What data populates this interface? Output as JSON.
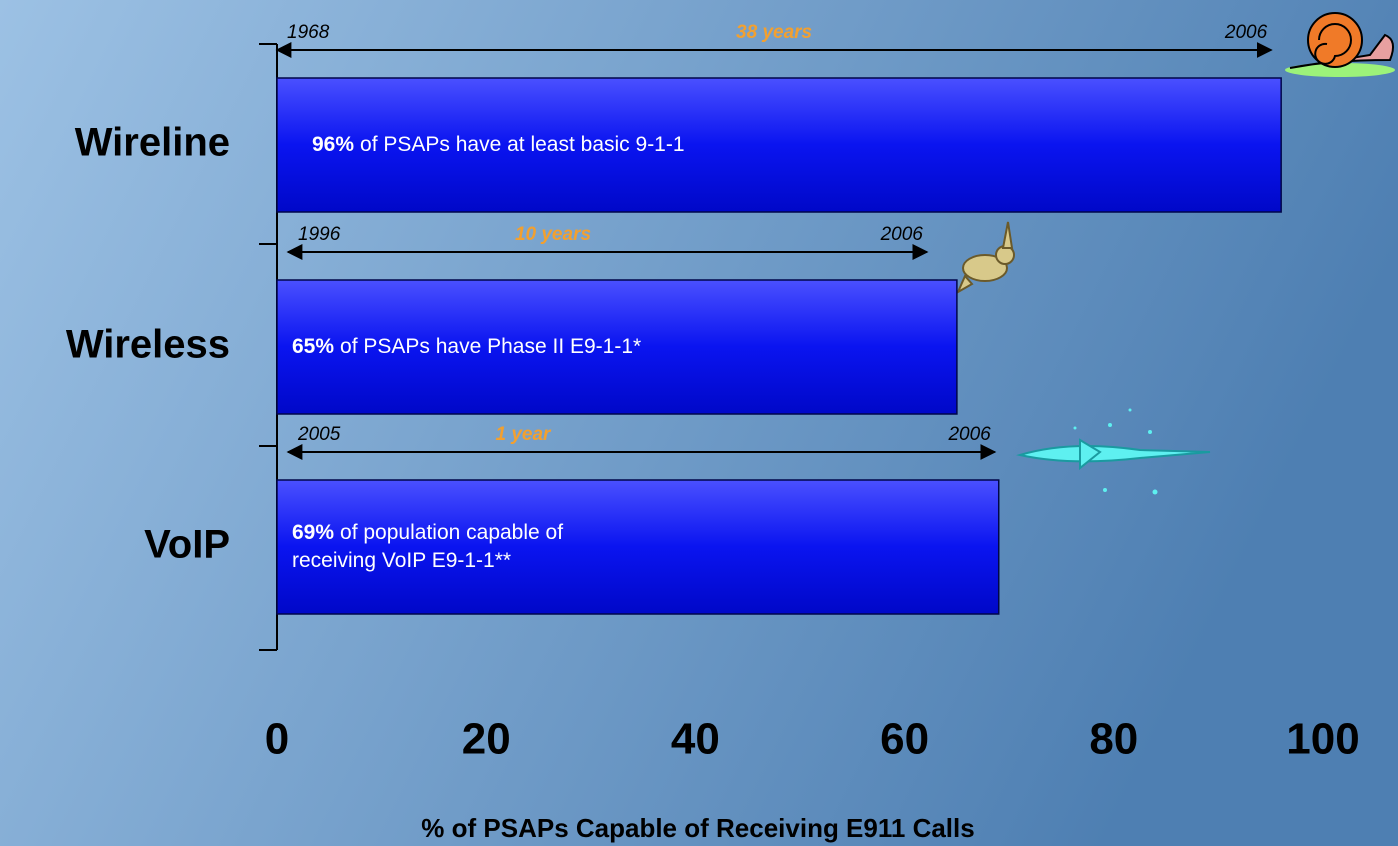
{
  "chart_data": {
    "type": "hbar",
    "categories": [
      "Wireline",
      "Wireless",
      "VoIP"
    ],
    "values": [
      96,
      65,
      69
    ],
    "value_labels": [
      "96%",
      "65%",
      "69%"
    ],
    "descriptions": [
      [
        "of PSAPs have at least basic 9-1-1"
      ],
      [
        "of PSAPs have Phase II E9-1-1*"
      ],
      [
        "of population capable of",
        "receiving VoIP E9-1-1**"
      ]
    ],
    "timelines": [
      {
        "start": "1968",
        "end": "2006",
        "duration": "38 years"
      },
      {
        "start": "1996",
        "end": "2006",
        "duration": "10 years"
      },
      {
        "start": "2005",
        "end": "2006",
        "duration": "1 year"
      }
    ],
    "color": "#0a14f0",
    "xlim": [
      0,
      100
    ],
    "xticks": [
      0,
      20,
      40,
      60,
      80,
      100
    ],
    "xlabel": "% of PSAPs Capable of Receiving E911 Calls"
  }
}
